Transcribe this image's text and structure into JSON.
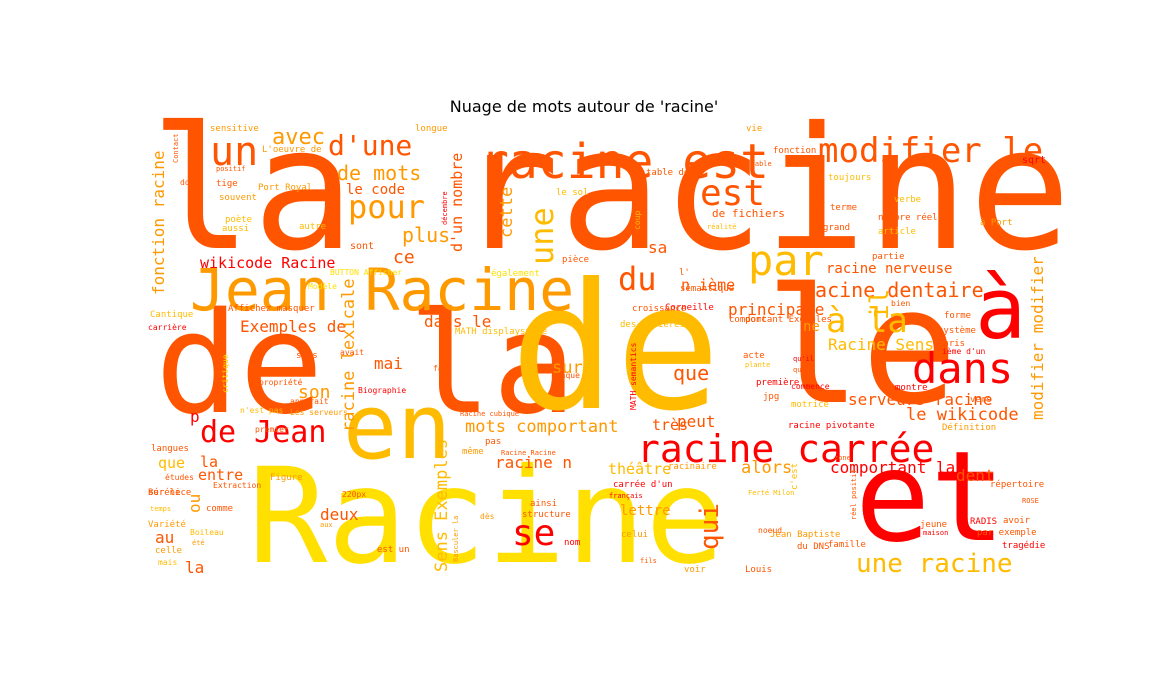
{
  "chart_data": {
    "type": "wordcloud",
    "title": "Nuage de mots autour de 'racine'",
    "colors": [
      "#ff0000",
      "#ff5500",
      "#ff9900",
      "#ffbb00",
      "#ffe000"
    ],
    "words": [
      {
        "text": "la racine",
        "c": 1
      },
      {
        "text": "de la",
        "c": 1
      },
      {
        "text": "Racine",
        "c": 4
      },
      {
        "text": "de",
        "c": 3
      },
      {
        "text": "le",
        "c": 1
      },
      {
        "text": "Jean Racine",
        "c": 2
      },
      {
        "text": "et",
        "c": 0
      },
      {
        "text": "racine est",
        "c": 1
      },
      {
        "text": "racine carrée",
        "c": 0
      },
      {
        "text": "en",
        "c": 3
      },
      {
        "text": "à",
        "c": 0
      },
      {
        "text": "modifier le",
        "c": 1
      },
      {
        "text": "dans",
        "c": 0
      },
      {
        "text": "par",
        "c": 3
      },
      {
        "text": "un",
        "c": 1
      },
      {
        "text": "une",
        "c": 3
      },
      {
        "text": "est",
        "c": 1
      },
      {
        "text": "pour",
        "c": 2
      },
      {
        "text": "d'une",
        "c": 1
      },
      {
        "text": "du",
        "c": 1
      },
      {
        "text": "de Jean",
        "c": 0
      },
      {
        "text": "à la",
        "c": 3
      },
      {
        "text": "se",
        "c": 0
      },
      {
        "text": "une racine",
        "c": 3
      },
      {
        "text": "qui",
        "c": 1
      },
      {
        "text": "racine dentaire",
        "c": 1
      },
      {
        "text": "avec",
        "c": 2
      },
      {
        "text": "de mots",
        "c": 2
      },
      {
        "text": "mots comportant",
        "c": 2
      },
      {
        "text": "serveurs racine",
        "c": 1
      },
      {
        "text": "Exemples de",
        "c": 1
      },
      {
        "text": "wikicode Racine",
        "c": 0
      },
      {
        "text": "racine nerveuse",
        "c": 1
      },
      {
        "text": "le wikicode",
        "c": 1
      },
      {
        "text": "modifier modifier",
        "c": 2
      },
      {
        "text": "fonction racine",
        "c": 2
      },
      {
        "text": "d'un nombre",
        "c": 1
      },
      {
        "text": "plus",
        "c": 2
      },
      {
        "text": "ce",
        "c": 1
      },
      {
        "text": "cette",
        "c": 2
      },
      {
        "text": "sa",
        "c": 1
      },
      {
        "text": "que",
        "c": 1
      },
      {
        "text": "son",
        "c": 2
      },
      {
        "text": "mai",
        "c": 1
      },
      {
        "text": "sur",
        "c": 2
      },
      {
        "text": "racine lexicale",
        "c": 2
      },
      {
        "text": "Racine Sens",
        "c": 3
      },
      {
        "text": "dans le",
        "c": 1
      },
      {
        "text": "racine n",
        "c": 1
      },
      {
        "text": "peut",
        "c": 1
      },
      {
        "text": "très",
        "c": 1
      },
      {
        "text": "principale",
        "c": 1
      },
      {
        "text": "n ième",
        "c": 1
      },
      {
        "text": "comportant la",
        "c": 0
      },
      {
        "text": "deux",
        "c": 1
      },
      {
        "text": "Sens Exemples",
        "c": 3
      },
      {
        "text": "dent",
        "c": 1
      },
      {
        "text": "alors",
        "c": 2
      },
      {
        "text": "théâtre",
        "c": 3
      },
      {
        "text": "le code",
        "c": 1
      },
      {
        "text": "il",
        "c": 3
      },
      {
        "text": "ne",
        "c": 2
      },
      {
        "text": "au",
        "c": 1
      },
      {
        "text": "ou",
        "c": 2
      },
      {
        "text": "que",
        "c": 3
      },
      {
        "text": "la",
        "c": 1
      },
      {
        "text": "entre",
        "c": 1
      },
      {
        "text": "sont",
        "c": 1
      },
      {
        "text": "p",
        "c": 0
      },
      {
        "text": "lettre",
        "c": 2
      },
      {
        "text": "la",
        "c": 1
      },
      {
        "text": "sensitive",
        "c": 2
      },
      {
        "text": "longue",
        "c": 2
      },
      {
        "text": "vie",
        "c": 2
      },
      {
        "text": "L'oeuvre de",
        "c": 2
      },
      {
        "text": "fonction",
        "c": 1
      },
      {
        "text": "sqrt",
        "c": 0
      },
      {
        "text": "Port Royal",
        "c": 2
      },
      {
        "text": "de fichiers",
        "c": 1
      },
      {
        "text": "carrière",
        "c": 0
      },
      {
        "text": "Corneille",
        "c": 0
      },
      {
        "text": "système",
        "c": 1
      },
      {
        "text": "Paris",
        "c": 1
      },
      {
        "text": "Biographie",
        "c": 0
      },
      {
        "text": "fait",
        "c": 1
      },
      {
        "text": "acte",
        "c": 1
      },
      {
        "text": "première",
        "c": 0
      },
      {
        "text": "jpg",
        "c": 1
      },
      {
        "text": "langues",
        "c": 1
      },
      {
        "text": "Bérénice",
        "c": 1
      },
      {
        "text": "Figure",
        "c": 2
      },
      {
        "text": "comme",
        "c": 1
      },
      {
        "text": "ainsi",
        "c": 1
      },
      {
        "text": "structure",
        "c": 1
      },
      {
        "text": "nom",
        "c": 0
      },
      {
        "text": "fils",
        "c": 1
      },
      {
        "text": "voir",
        "c": 2
      },
      {
        "text": "Louis",
        "c": 1
      },
      {
        "text": "Jean Baptiste",
        "c": 2
      },
      {
        "text": "du DNS",
        "c": 1
      },
      {
        "text": "famille",
        "c": 1
      },
      {
        "text": "jeune",
        "c": 1
      },
      {
        "text": "maison",
        "c": 0
      },
      {
        "text": "RADIS",
        "c": 0
      },
      {
        "text": "avoir",
        "c": 1
      },
      {
        "text": "par exemple",
        "c": 1
      },
      {
        "text": "tragédie",
        "c": 0
      },
      {
        "text": "répertoire",
        "c": 1
      },
      {
        "text": "celle",
        "c": 2
      },
      {
        "text": "est un",
        "c": 1
      },
      {
        "text": "dès",
        "c": 2
      },
      {
        "text": "celui",
        "c": 2
      },
      {
        "text": "sur le",
        "c": 1
      },
      {
        "text": "Variété",
        "c": 2
      },
      {
        "text": "à Port",
        "c": 2
      },
      {
        "text": "nombre réel",
        "c": 1
      },
      {
        "text": "article",
        "c": 3
      },
      {
        "text": "le sol",
        "c": 3
      },
      {
        "text": "table des",
        "c": 1
      },
      {
        "text": "pas",
        "c": 1
      },
      {
        "text": "carrée d'un",
        "c": 0
      },
      {
        "text": "français",
        "c": 0
      },
      {
        "text": "Cantique",
        "c": 3
      },
      {
        "text": "tige",
        "c": 1
      },
      {
        "text": "souvent",
        "c": 2
      },
      {
        "text": "poète",
        "c": 3
      },
      {
        "text": "aussi",
        "c": 3
      },
      {
        "text": "autre",
        "c": 3
      },
      {
        "text": "positif",
        "c": 1
      },
      {
        "text": "dont",
        "c": 1
      },
      {
        "text": "Contact",
        "c": 1
      },
      {
        "text": "toujours",
        "c": 3
      },
      {
        "text": "non",
        "c": 1
      },
      {
        "text": "verbe",
        "c": 3
      },
      {
        "text": "grand",
        "c": 1
      },
      {
        "text": "réalité",
        "c": 3
      },
      {
        "text": "terme",
        "c": 1
      },
      {
        "text": "pièce",
        "c": 1
      },
      {
        "text": "également",
        "c": 4
      },
      {
        "text": "l'",
        "c": 1
      },
      {
        "text": "sémantique",
        "c": 1
      },
      {
        "text": "croissance",
        "c": 1
      },
      {
        "text": "des matières",
        "c": 3
      },
      {
        "text": "partie",
        "c": 1
      },
      {
        "text": "forme",
        "c": 1
      },
      {
        "text": "donc",
        "c": 1
      },
      {
        "text": "comportant Exemples",
        "c": 1
      },
      {
        "text": "la table",
        "c": 1
      },
      {
        "text": "qu'il",
        "c": 1
      },
      {
        "text": "qu'il",
        "c": 0
      },
      {
        "text": "montre",
        "c": 0
      },
      {
        "text": "commence",
        "c": 0
      },
      {
        "text": "motrice",
        "c": 3
      },
      {
        "text": "racine pivotante",
        "c": 0
      },
      {
        "text": "c'est",
        "c": 3
      },
      {
        "text": "zone",
        "c": 1
      },
      {
        "text": "racinaire",
        "c": 2
      },
      {
        "text": "Définition",
        "c": 2
      },
      {
        "text": "vers",
        "c": 1
      },
      {
        "text": "réel positif",
        "c": 1
      },
      {
        "text": "ième d'un",
        "c": 0
      },
      {
        "text": "coup",
        "c": 3
      },
      {
        "text": "décembre",
        "c": 0
      },
      {
        "text": "MATH semantics",
        "c": 0
      },
      {
        "text": "MATH displaystyle",
        "c": 3
      },
      {
        "text": "même",
        "c": 2
      },
      {
        "text": "Racine cubique",
        "c": 1
      },
      {
        "text": "Racine Racine",
        "c": 1
      },
      {
        "text": "Basculer la",
        "c": 2
      },
      {
        "text": "BUTTON Afficher",
        "c": 4
      },
      {
        "text": "Modèle",
        "c": 4
      },
      {
        "text": "Affichez masquer",
        "c": 1
      },
      {
        "text": "si",
        "c": 1
      },
      {
        "text": "avait",
        "c": 1
      },
      {
        "text": "sous",
        "c": 1
      },
      {
        "text": "critique",
        "c": 4
      },
      {
        "text": "propriété",
        "c": 1
      },
      {
        "text": "n'est pas",
        "c": 3
      },
      {
        "text": "premier",
        "c": 1
      },
      {
        "text": "Les serveurs",
        "c": 2
      },
      {
        "text": "apparait",
        "c": 1
      },
      {
        "text": "220px",
        "c": 1
      },
      {
        "text": "aux",
        "c": 2
      },
      {
        "text": "études",
        "c": 1
      },
      {
        "text": "Extraction",
        "c": 1
      },
      {
        "text": "temps",
        "c": 3
      },
      {
        "text": "Boileau",
        "c": 3
      },
      {
        "text": "été",
        "c": 2
      },
      {
        "text": "mais",
        "c": 3
      },
      {
        "text": "chaque",
        "c": 1
      },
      {
        "text": "plante",
        "c": 3
      },
      {
        "text": "Ferté Milon",
        "c": 3
      },
      {
        "text": "noeud",
        "c": 1
      },
      {
        "text": "bien",
        "c": 1
      },
      {
        "text": "ROSE",
        "c": 1
      },
      {
        "text": "M",
        "c": 1
      },
      {
        "text": "t",
        "c": 0
      },
      {
        "text": "aile",
        "c": 3
      },
      {
        "text": "elle",
        "c": 3
      }
    ]
  }
}
